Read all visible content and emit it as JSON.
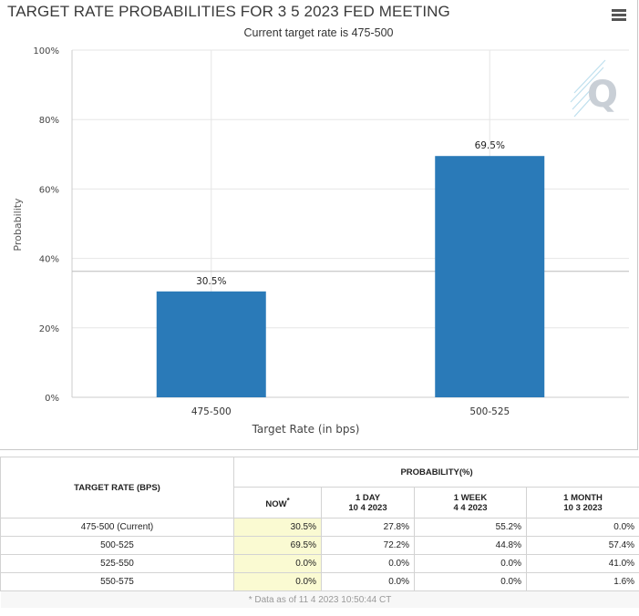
{
  "chart_data": {
    "type": "bar",
    "title": "TARGET RATE PROBABILITIES FOR 3 5 2023 FED MEETING",
    "subtitle": "Current target rate is 475-500",
    "xlabel": "Target Rate (in bps)",
    "ylabel": "Probability",
    "categories": [
      "475-500",
      "500-525"
    ],
    "values": [
      30.5,
      69.5
    ],
    "data_labels": [
      "30.5%",
      "69.5%"
    ],
    "ylim": [
      0,
      100
    ],
    "yticks": [
      "0%",
      "20%",
      "40%",
      "60%",
      "80%",
      "100%"
    ],
    "reference_line": 36.3,
    "grid": true,
    "bar_color": "#2a7ab8"
  },
  "menu_icon": "hamburger-menu-icon",
  "watermark": "Q",
  "table": {
    "col_header": "TARGET RATE (BPS)",
    "group_header": "PROBABILITY(%)",
    "sub_headers": [
      {
        "label": "NOW",
        "sup": "*",
        "date": ""
      },
      {
        "label": "1 DAY",
        "sup": "",
        "date": "10 4 2023"
      },
      {
        "label": "1 WEEK",
        "sup": "",
        "date": "4 4 2023"
      },
      {
        "label": "1 MONTH",
        "sup": "",
        "date": "10 3 2023"
      }
    ],
    "rows": [
      {
        "rate": "475-500 (Current)",
        "values": [
          "30.5%",
          "27.8%",
          "55.2%",
          "0.0%"
        ]
      },
      {
        "rate": "500-525",
        "values": [
          "69.5%",
          "72.2%",
          "44.8%",
          "57.4%"
        ]
      },
      {
        "rate": "525-550",
        "values": [
          "0.0%",
          "0.0%",
          "0.0%",
          "41.0%"
        ]
      },
      {
        "rate": "550-575",
        "values": [
          "0.0%",
          "0.0%",
          "0.0%",
          "1.6%"
        ]
      }
    ],
    "footnote": "* Data as of 11 4 2023 10:50:44 CT"
  }
}
